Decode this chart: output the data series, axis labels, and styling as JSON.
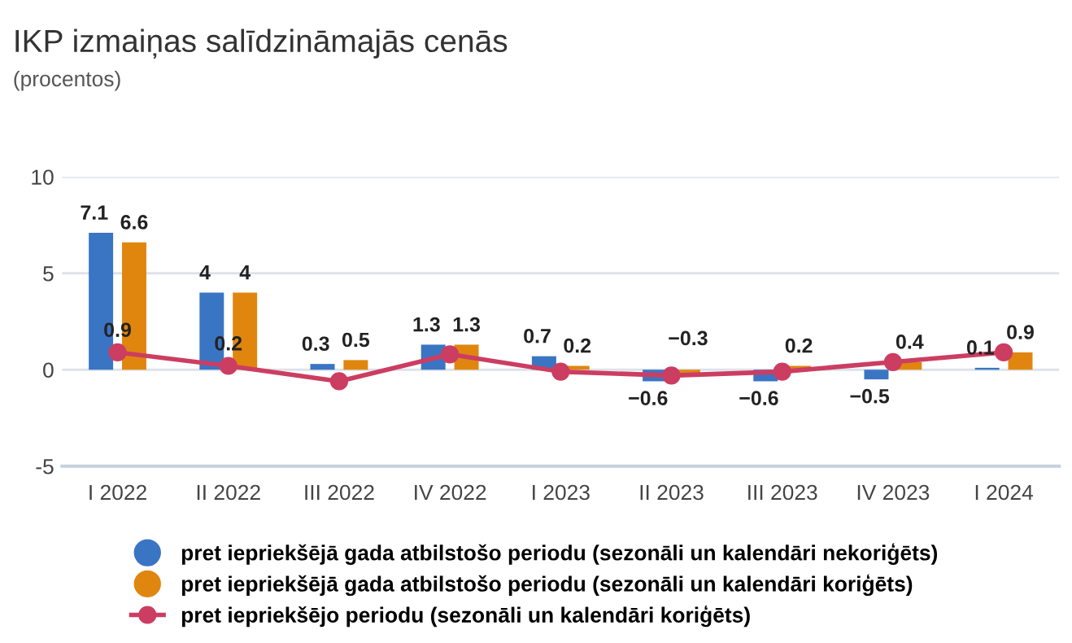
{
  "chart_data": {
    "type": "bar",
    "title": "IKP izmaiņas salīdzināmajās cenās",
    "subtitle": "(procentos)",
    "categories": [
      "I 2022",
      "II 2022",
      "III 2022",
      "IV 2022",
      "I 2023",
      "II 2023",
      "III 2023",
      "IV 2023",
      "I 2024"
    ],
    "series": [
      {
        "name": "pret iepriekšējā gada atbilstošo periodu (sezonāli un kalendāri nekoriģēts)",
        "color": "#3a75c4",
        "values": [
          7.1,
          4,
          0.3,
          1.3,
          0.7,
          -0.6,
          -0.6,
          -0.5,
          0.1
        ],
        "value_labels": [
          "7.1",
          "4",
          "0.3",
          "1.3",
          "0.7",
          "−0.6",
          "−0.6",
          "−0.5",
          "0.1"
        ]
      },
      {
        "name": "pret iepriekšējā gada atbilstošo periodu (sezonāli un kalendāri koriģēts)",
        "color": "#e0860f",
        "values": [
          6.6,
          4,
          0.5,
          1.3,
          0.2,
          -0.3,
          0.2,
          0.4,
          0.9
        ],
        "value_labels": [
          "6.6",
          "4",
          "0.5",
          "1.3",
          "0.2",
          "−0.3",
          "0.2",
          "0.4",
          "0.9"
        ]
      },
      {
        "name": "pret iepriekšējo periodu (sezonāli un kalendāri koriģēts)",
        "type": "line",
        "marker": "circle",
        "color": "#cc3d62",
        "values": [
          0.9,
          0.2,
          -0.6,
          0.8,
          -0.1,
          -0.3,
          -0.1,
          0.4,
          0.9
        ],
        "value_labels": [
          "0.9",
          "0.2",
          null,
          null,
          null,
          null,
          null,
          null,
          null
        ]
      }
    ],
    "ylim": [
      -5,
      10
    ],
    "yticks": [
      -5,
      0,
      5,
      10
    ],
    "grid": "y",
    "legend": "bottom"
  }
}
